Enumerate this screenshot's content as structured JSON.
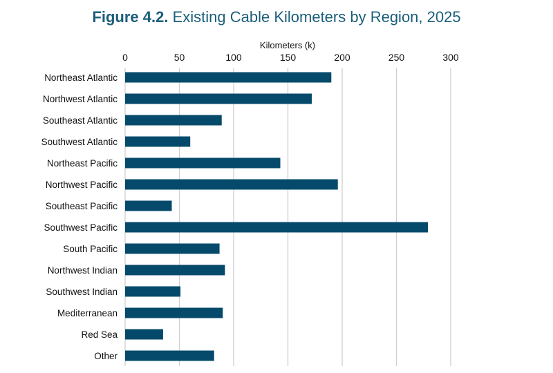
{
  "chart_data": {
    "type": "bar",
    "orientation": "horizontal",
    "title_prefix": "Figure 4.2.",
    "title": "Existing Cable Kilometers by Region, 2025",
    "xlabel": "Kilometers (k)",
    "ylabel": "",
    "xlim": [
      0,
      300
    ],
    "xticks": [
      0,
      50,
      100,
      150,
      200,
      250,
      300
    ],
    "grid": true,
    "categories": [
      "Northeast Atlantic",
      "Northwest Atlantic",
      "Southeast Atlantic",
      "Southwest Atlantic",
      "Northeast Pacific",
      "Northwest Pacific",
      "Southeast Pacific",
      "Southwest Pacific",
      "South Pacific",
      "Northwest Indian",
      "Southwest Indian",
      "Mediterranean",
      "Red Sea",
      "Other"
    ],
    "values": [
      190,
      172,
      89,
      60,
      143,
      196,
      43,
      279,
      87,
      92,
      51,
      90,
      35,
      82
    ],
    "bar_color": "#064a6b",
    "title_color": "#1b5e7b"
  }
}
